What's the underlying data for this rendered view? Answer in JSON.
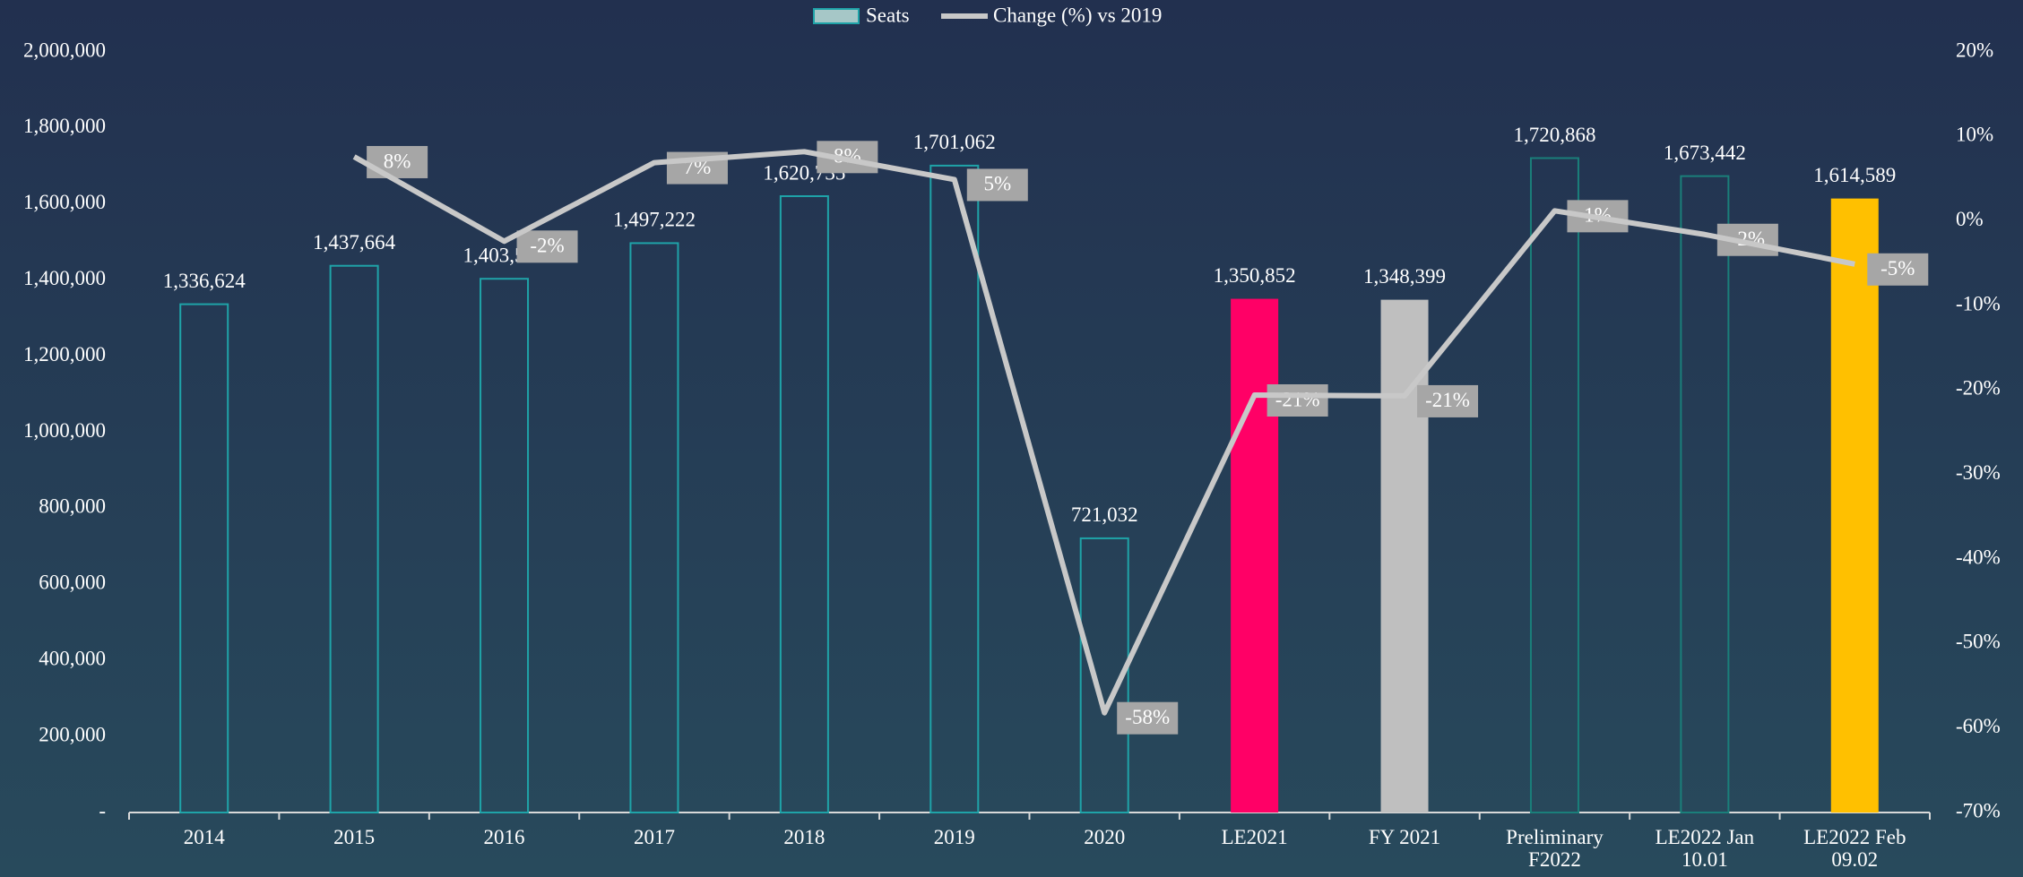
{
  "chart_data": {
    "type": "bar-line",
    "categories": [
      "2014",
      "2015",
      "2016",
      "2017",
      "2018",
      "2019",
      "2020",
      "LE2021",
      "FY 2021",
      "Preliminary F2022",
      "LE2022 Jan 10.01",
      "LE2022 Feb 09.02"
    ],
    "series": [
      {
        "name": "Seats",
        "type": "bar",
        "color": "#1fa3a8",
        "values": [
          1336624,
          1437664,
          1403526,
          1497222,
          1620735,
          1701062,
          721032,
          1350852,
          1348399,
          1720868,
          1673442,
          1614589
        ],
        "value_labels": [
          "1,336,624",
          "1,437,664",
          "1,403,526",
          "1,497,222",
          "1,620,735",
          "1,701,062",
          "721,032",
          "1,350,852",
          "1,348,399",
          "1,720,868",
          "1,673,442",
          "1,614,589"
        ],
        "colors": [
          "#1fa3a8",
          "#1fa3a8",
          "#1fa3a8",
          "#1fa3a8",
          "#1fa3a8",
          "#1fa3a8",
          "#1fa3a8",
          "#ff0066",
          "#bfbfbf",
          "#1a7f7a",
          "#1a7f7a",
          "#ffc000"
        ],
        "filled": [
          false,
          false,
          false,
          false,
          false,
          false,
          false,
          true,
          true,
          false,
          false,
          true
        ]
      },
      {
        "name": "Change (%) vs 2019",
        "type": "line",
        "axis": "y2",
        "color": "#c8c8c8",
        "values": [
          null,
          7.6,
          -2.4,
          6.9,
          8.2,
          4.9,
          -58.2,
          -20.6,
          -20.7,
          1.2,
          -1.6,
          -5.1
        ],
        "value_labels": [
          null,
          "8%",
          "-2%",
          "7%",
          "8%",
          "5%",
          "-58%",
          "-21%",
          "-21%",
          "1%",
          "-2%",
          "-5%"
        ]
      }
    ],
    "ylim": [
      0,
      2000000
    ],
    "yticks": [
      {
        "value": 0,
        "label": "-"
      },
      {
        "value": 200000,
        "label": "200,000"
      },
      {
        "value": 400000,
        "label": "400,000"
      },
      {
        "value": 600000,
        "label": "600,000"
      },
      {
        "value": 800000,
        "label": "800,000"
      },
      {
        "value": 1000000,
        "label": "1,000,000"
      },
      {
        "value": 1200000,
        "label": "1,200,000"
      },
      {
        "value": 1400000,
        "label": "1,400,000"
      },
      {
        "value": 1600000,
        "label": "1,600,000"
      },
      {
        "value": 1800000,
        "label": "1,800,000"
      },
      {
        "value": 2000000,
        "label": "2,000,000"
      }
    ],
    "y2lim": [
      -70,
      20
    ],
    "y2ticks": [
      {
        "value": -70,
        "label": "-70%"
      },
      {
        "value": -60,
        "label": "-60%"
      },
      {
        "value": -50,
        "label": "-50%"
      },
      {
        "value": -40,
        "label": "-40%"
      },
      {
        "value": -30,
        "label": "-30%"
      },
      {
        "value": -20,
        "label": "-20%"
      },
      {
        "value": -10,
        "label": "-10%"
      },
      {
        "value": 0,
        "label": "0%"
      },
      {
        "value": 10,
        "label": "10%"
      },
      {
        "value": 20,
        "label": "20%"
      }
    ],
    "legend": "top"
  }
}
